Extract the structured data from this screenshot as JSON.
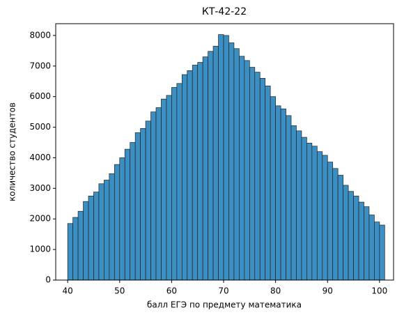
{
  "chart_data": {
    "type": "histogram",
    "title": "КТ-42-22",
    "xlabel": "балл ЕГЭ по предмету математика",
    "ylabel": "количество студентов",
    "bins": [
      40,
      41,
      42,
      43,
      44,
      45,
      46,
      47,
      48,
      49,
      50,
      51,
      52,
      53,
      54,
      55,
      56,
      57,
      58,
      59,
      60,
      61,
      62,
      63,
      64,
      65,
      66,
      67,
      68,
      69,
      70,
      71,
      72,
      73,
      74,
      75,
      76,
      77,
      78,
      79,
      80,
      81,
      82,
      83,
      84,
      85,
      86,
      87,
      88,
      89,
      90,
      91,
      92,
      93,
      94,
      95,
      96,
      97,
      98,
      99,
      100,
      101
    ],
    "values": [
      1850,
      2050,
      2250,
      2570,
      2750,
      2880,
      3150,
      3270,
      3480,
      3780,
      4000,
      4280,
      4500,
      4820,
      4960,
      5200,
      5500,
      5640,
      5920,
      6040,
      6300,
      6430,
      6720,
      6850,
      7030,
      7120,
      7300,
      7480,
      7650,
      8030,
      8000,
      7760,
      7570,
      7320,
      7180,
      6960,
      6800,
      6600,
      6350,
      6000,
      5700,
      5600,
      5380,
      5050,
      4880,
      4670,
      4480,
      4380,
      4200,
      4080,
      3860,
      3650,
      3430,
      3100,
      2900,
      2750,
      2550,
      2400,
      2130,
      1900,
      1800
    ],
    "color": "#3b8fc2",
    "xlim": [
      37.7,
      102.7
    ],
    "xticks": [
      40,
      50,
      60,
      70,
      80,
      90,
      100
    ],
    "ylim": [
      0,
      8385
    ],
    "yticks": [
      0,
      1000,
      2000,
      3000,
      4000,
      5000,
      6000,
      7000,
      8000
    ]
  }
}
